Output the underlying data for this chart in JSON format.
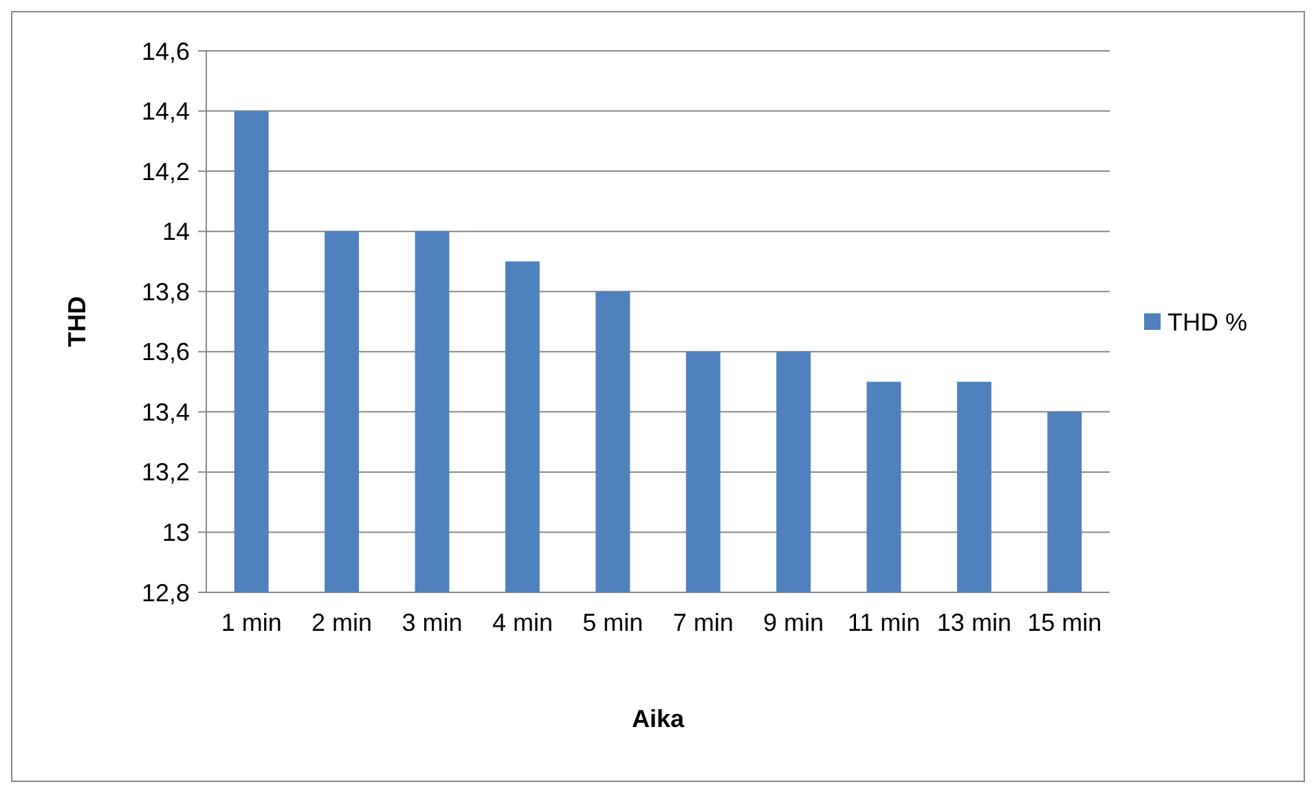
{
  "chart_data": {
    "type": "bar",
    "xlabel": "Aika",
    "ylabel": "THD",
    "categories": [
      "1 min",
      "2 min",
      "3 min",
      "4 min",
      "5 min",
      "7 min",
      "9 min",
      "11 min",
      "13 min",
      "15 min"
    ],
    "series": [
      {
        "name": "THD %",
        "color": "#4f81bd",
        "values": [
          14.4,
          14.0,
          14.0,
          13.9,
          13.8,
          13.6,
          13.6,
          13.5,
          13.5,
          13.4
        ]
      }
    ],
    "ylim": [
      12.8,
      14.6
    ],
    "yticks": [
      {
        "value": 12.8,
        "label": "12,8"
      },
      {
        "value": 13,
        "label": "13"
      },
      {
        "value": 13.2,
        "label": "13,2"
      },
      {
        "value": 13.4,
        "label": "13,4"
      },
      {
        "value": 13.6,
        "label": "13,6"
      },
      {
        "value": 13.8,
        "label": "13,8"
      },
      {
        "value": 14,
        "label": "14"
      },
      {
        "value": 14.2,
        "label": "14,2"
      },
      {
        "value": 14.4,
        "label": "14,4"
      },
      {
        "value": 14.6,
        "label": "14,6"
      }
    ],
    "grid": "y",
    "legend": "right"
  }
}
